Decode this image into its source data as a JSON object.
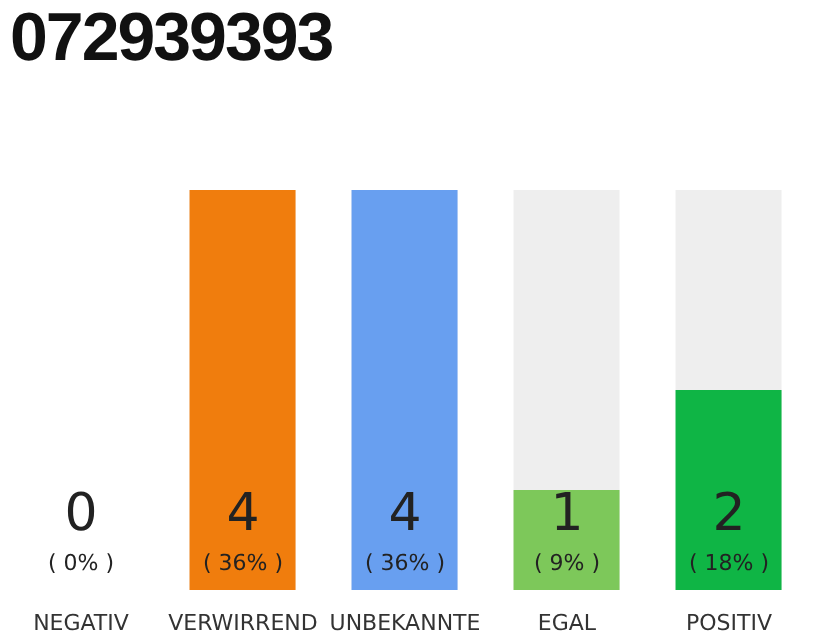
{
  "chart_data": {
    "type": "bar",
    "title": "072939393",
    "categories": [
      "NEGATIV",
      "VERWIRREND",
      "UNBEKANNTE",
      "EGAL",
      "POSITIV"
    ],
    "values": [
      0,
      4,
      4,
      1,
      2
    ],
    "colors": [
      "#555555",
      "#f07d0d",
      "#689ff0",
      "#7dc85a",
      "#0fb545"
    ],
    "tick_labels": "x",
    "grid": false,
    "legend": false,
    "value_labels": [
      "0\n( 0% )",
      "4\n( 36% )",
      "4\n( 36% )",
      "1\n( 9% )",
      "2\n( 18% )"
    ]
  }
}
